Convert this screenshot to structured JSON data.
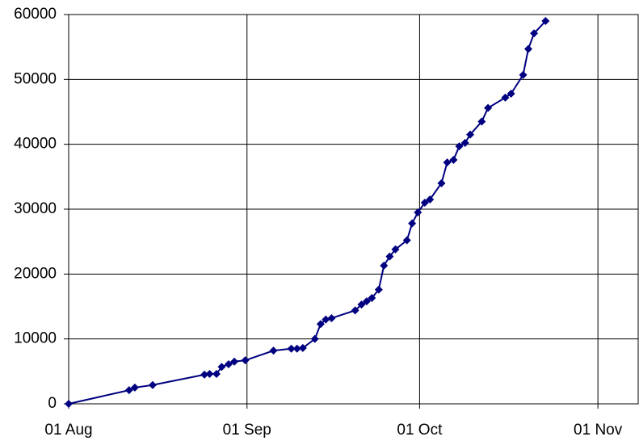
{
  "chart_data": {
    "type": "line",
    "x": [
      0,
      10.5,
      11.5,
      14.6,
      23.6,
      24.5,
      25.7,
      26.6,
      27.8,
      28.8,
      30.7,
      35.6,
      38.7,
      39.7,
      40.7,
      42.8,
      43.8,
      44.7,
      45.7,
      49.8,
      50.9,
      51.8,
      52.7,
      53.9,
      54.8,
      55.8,
      56.8,
      58.8,
      59.7,
      60.7,
      61.9,
      62.8,
      64.8,
      65.8,
      66.9,
      67.9,
      68.9,
      69.8,
      71.8,
      72.9,
      75.9,
      76.9,
      79.0,
      79.9,
      80.9,
      82.9
    ],
    "series": [
      {
        "color": "#000080",
        "values": [
          0,
          2100,
          2500,
          2900,
          4500,
          4600,
          4600,
          5700,
          6100,
          6500,
          6700,
          8200,
          8500,
          8500,
          8600,
          10000,
          12300,
          13000,
          13200,
          14400,
          15300,
          15800,
          16300,
          17600,
          21300,
          22700,
          23800,
          25200,
          27800,
          29500,
          31000,
          31500,
          34000,
          37200,
          37600,
          39700,
          40200,
          41500,
          43500,
          45600,
          47200,
          47800,
          50700,
          54700,
          57100,
          59000
        ]
      }
    ],
    "xlim": [
      0,
      99
    ],
    "xticks": [
      {
        "value": 0,
        "label": "01 Aug"
      },
      {
        "value": 31,
        "label": "01 Sep"
      },
      {
        "value": 61,
        "label": "01 Oct"
      },
      {
        "value": 92,
        "label": "01 Nov"
      }
    ],
    "ylim": [
      0,
      60000
    ],
    "yticks": [
      0,
      10000,
      20000,
      30000,
      40000,
      50000,
      60000
    ],
    "grid": true
  }
}
